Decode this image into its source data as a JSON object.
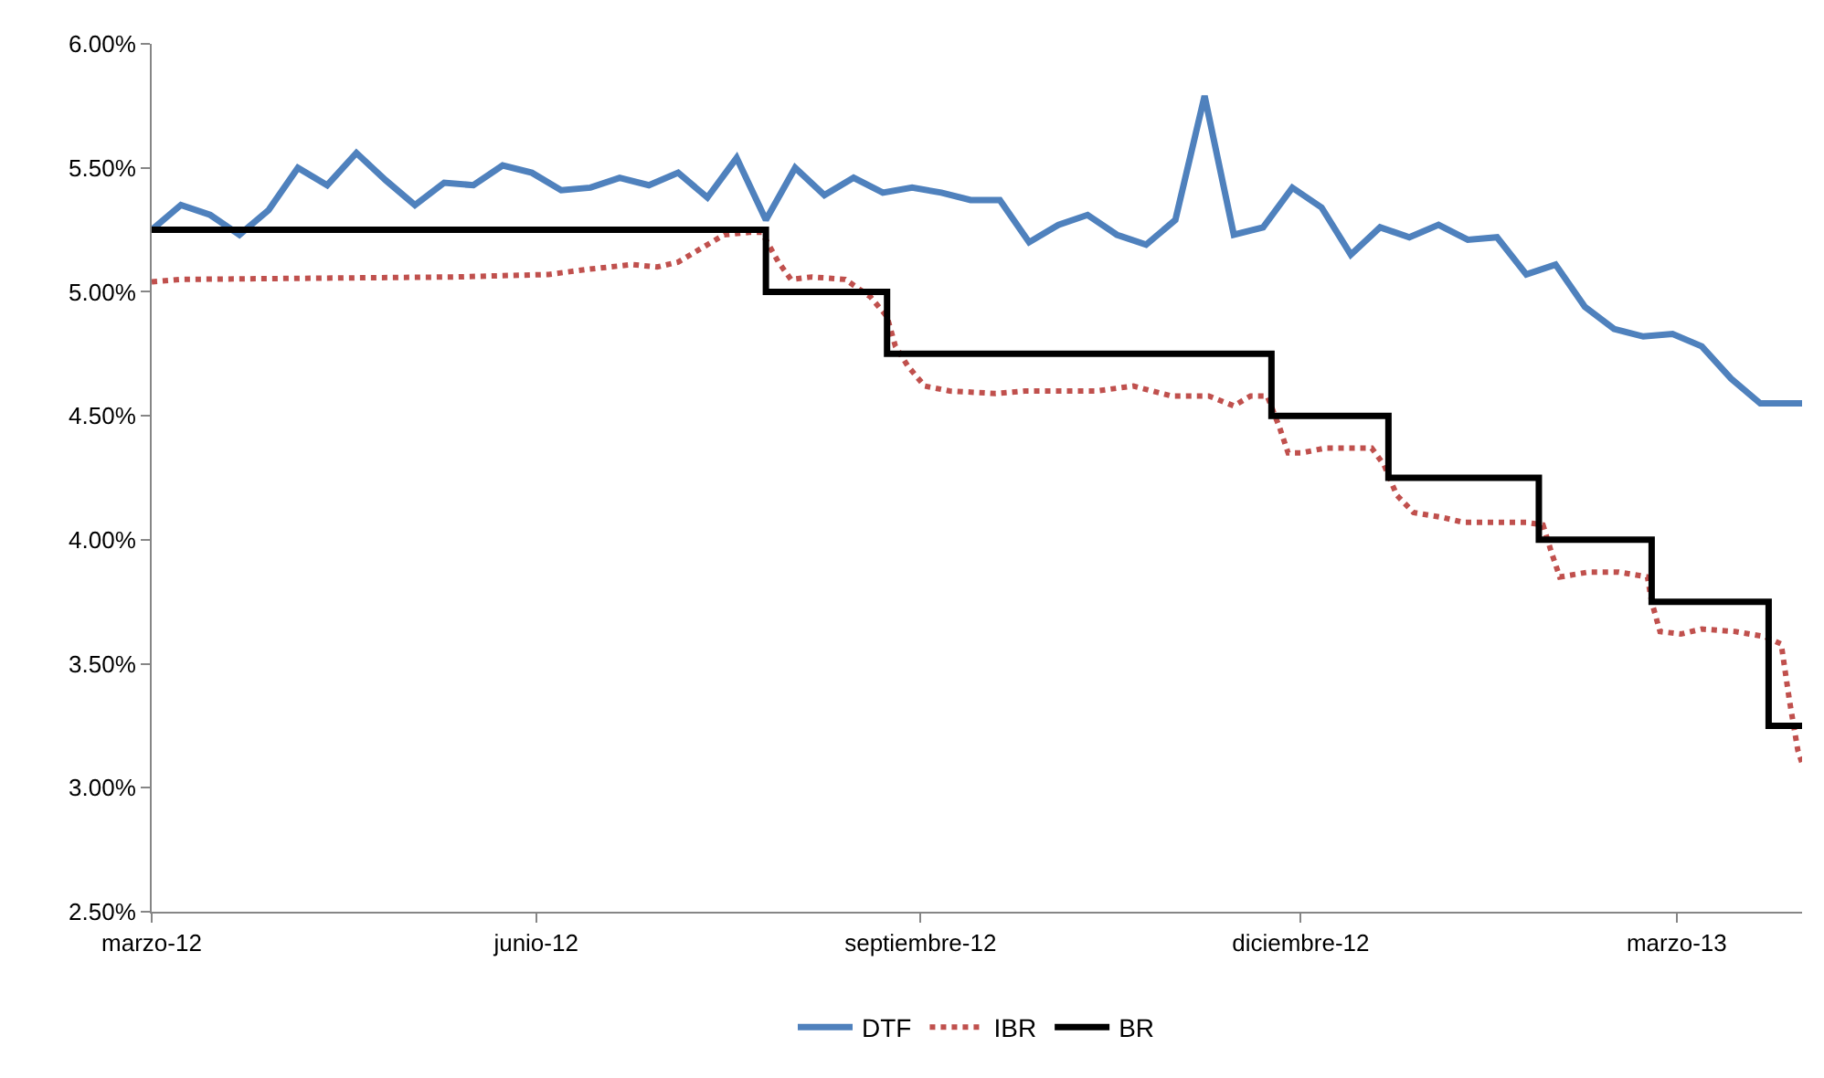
{
  "chart_data": {
    "type": "line",
    "xlim": [
      "2012-03-01",
      "2013-03-31"
    ],
    "xticks": [
      {
        "value": "2012-03-01",
        "label": "marzo-12"
      },
      {
        "value": "2012-06-01",
        "label": "junio-12"
      },
      {
        "value": "2012-09-01",
        "label": "septiembre-12"
      },
      {
        "value": "2012-12-01",
        "label": "diciembre-12"
      },
      {
        "value": "2013-03-01",
        "label": "marzo-13"
      }
    ],
    "ylim": [
      2.5,
      6
    ],
    "yticks": [
      {
        "value": 2.5,
        "label": "2.50%"
      },
      {
        "value": 3,
        "label": "3.00%"
      },
      {
        "value": 3.5,
        "label": "3.50%"
      },
      {
        "value": 4,
        "label": "4.00%"
      },
      {
        "value": 4.5,
        "label": "4.50%"
      },
      {
        "value": 5,
        "label": "5.00%"
      },
      {
        "value": 5.5,
        "label": "5.50%"
      },
      {
        "value": 6,
        "label": "6.00%"
      }
    ],
    "grid": false,
    "legend": "bottom",
    "series": [
      {
        "name": "DTF",
        "color": "#4f81bd",
        "line_style": "solid",
        "x": [
          "2012-03-01",
          "2012-03-08",
          "2012-03-15",
          "2012-03-22",
          "2012-03-29",
          "2012-04-05",
          "2012-04-12",
          "2012-04-19",
          "2012-04-26",
          "2012-05-03",
          "2012-05-10",
          "2012-05-17",
          "2012-05-24",
          "2012-05-31",
          "2012-06-07",
          "2012-06-14",
          "2012-06-21",
          "2012-06-28",
          "2012-07-05",
          "2012-07-12",
          "2012-07-19",
          "2012-07-26",
          "2012-08-02",
          "2012-08-09",
          "2012-08-16",
          "2012-08-23",
          "2012-08-30",
          "2012-09-06",
          "2012-09-13",
          "2012-09-20",
          "2012-09-27",
          "2012-10-04",
          "2012-10-11",
          "2012-10-18",
          "2012-10-25",
          "2012-11-01",
          "2012-11-08",
          "2012-11-15",
          "2012-11-22",
          "2012-11-29",
          "2012-12-06",
          "2012-12-13",
          "2012-12-20",
          "2012-12-27",
          "2013-01-03",
          "2013-01-10",
          "2013-01-17",
          "2013-01-24",
          "2013-01-31",
          "2013-02-07",
          "2013-02-14",
          "2013-02-21",
          "2013-02-28",
          "2013-03-07",
          "2013-03-14",
          "2013-03-21",
          "2013-03-28",
          "2013-03-31"
        ],
        "values": [
          5.25,
          5.35,
          5.31,
          5.23,
          5.33,
          5.5,
          5.43,
          5.56,
          5.45,
          5.35,
          5.44,
          5.43,
          5.51,
          5.48,
          5.41,
          5.42,
          5.46,
          5.43,
          5.48,
          5.38,
          5.54,
          5.29,
          5.5,
          5.39,
          5.46,
          5.4,
          5.42,
          5.4,
          5.37,
          5.37,
          5.2,
          5.27,
          5.31,
          5.23,
          5.19,
          5.29,
          5.79,
          5.23,
          5.26,
          5.42,
          5.34,
          5.15,
          5.26,
          5.22,
          5.27,
          5.21,
          5.22,
          5.07,
          5.11,
          4.94,
          4.85,
          4.82,
          4.83,
          4.78,
          4.65,
          4.55,
          4.55,
          4.55
        ]
      },
      {
        "name": "IBR",
        "color": "#c0504d",
        "line_style": "dotted",
        "x": [
          "2012-03-01",
          "2012-03-08",
          "2012-05-13",
          "2012-06-04",
          "2012-06-13",
          "2012-06-24",
          "2012-06-30",
          "2012-07-05",
          "2012-07-11",
          "2012-07-16",
          "2012-07-22",
          "2012-07-25",
          "2012-07-29",
          "2012-08-01",
          "2012-08-06",
          "2012-08-14",
          "2012-08-20",
          "2012-08-24",
          "2012-08-26",
          "2012-08-29",
          "2012-09-02",
          "2012-09-08",
          "2012-09-19",
          "2012-09-26",
          "2012-10-13",
          "2012-10-22",
          "2012-10-31",
          "2012-11-09",
          "2012-11-15",
          "2012-11-19",
          "2012-11-23",
          "2012-11-26",
          "2012-11-28",
          "2012-12-01",
          "2012-12-07",
          "2012-12-18",
          "2012-12-21",
          "2012-12-24",
          "2012-12-28",
          "2013-01-04",
          "2013-01-09",
          "2013-01-24",
          "2013-01-28",
          "2013-01-30",
          "2013-02-01",
          "2013-02-08",
          "2013-02-15",
          "2013-02-22",
          "2013-02-23",
          "2013-02-25",
          "2013-03-02",
          "2013-03-07",
          "2013-03-15",
          "2013-03-22",
          "2013-03-26",
          "2013-03-28",
          "2013-03-30",
          "2013-03-31"
        ],
        "values": [
          5.04,
          5.05,
          5.06,
          5.07,
          5.09,
          5.11,
          5.1,
          5.12,
          5.18,
          5.23,
          5.24,
          5.24,
          5.12,
          5.05,
          5.06,
          5.05,
          4.98,
          4.9,
          4.78,
          4.7,
          4.62,
          4.6,
          4.59,
          4.6,
          4.6,
          4.62,
          4.58,
          4.58,
          4.54,
          4.58,
          4.58,
          4.45,
          4.35,
          4.35,
          4.37,
          4.37,
          4.3,
          4.18,
          4.11,
          4.09,
          4.07,
          4.07,
          4.06,
          3.95,
          3.85,
          3.87,
          3.87,
          3.85,
          3.75,
          3.63,
          3.62,
          3.64,
          3.63,
          3.61,
          3.58,
          3.35,
          3.15,
          3.1
        ]
      },
      {
        "name": "BR",
        "color": "#000000",
        "type": "step",
        "line_style": "solid",
        "x": [
          "2012-03-01",
          "2012-07-26",
          "2012-08-24",
          "2012-11-24",
          "2012-12-22",
          "2013-01-27",
          "2013-02-23",
          "2013-03-23",
          "2013-03-31"
        ],
        "values": [
          5.25,
          5,
          4.75,
          4.5,
          4.25,
          4,
          3.75,
          3.25,
          3.25
        ]
      }
    ]
  }
}
